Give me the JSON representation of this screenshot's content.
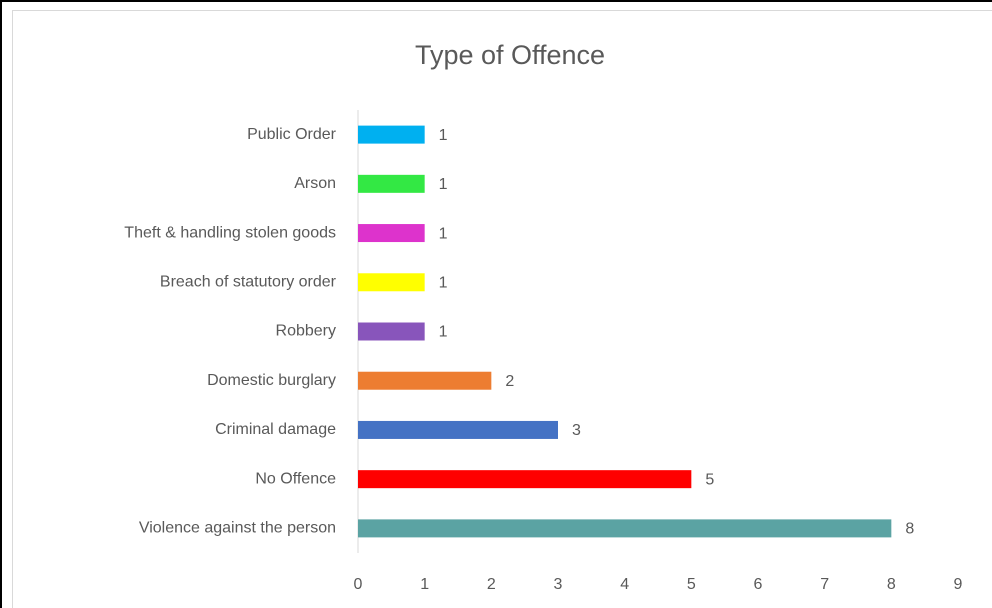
{
  "chart_data": {
    "type": "bar",
    "orientation": "horizontal",
    "title": "Type of Offence",
    "categories": [
      "Public Order",
      "Arson",
      "Theft & handling stolen goods",
      "Breach of statutory order",
      "Robbery",
      "Domestic burglary",
      "Criminal damage",
      "No Offence",
      "Violence against the person"
    ],
    "values": [
      1,
      1,
      1,
      1,
      1,
      2,
      3,
      5,
      8
    ],
    "colors": [
      "#00b0f0",
      "#33e844",
      "#dd33cc",
      "#ffff00",
      "#8855bb",
      "#ed7d31",
      "#4472c4",
      "#ff0000",
      "#5ba3a3"
    ],
    "xlim": [
      0,
      9
    ],
    "xticks": [
      0,
      1,
      2,
      3,
      4,
      5,
      6,
      7,
      8,
      9
    ],
    "grid": false
  }
}
